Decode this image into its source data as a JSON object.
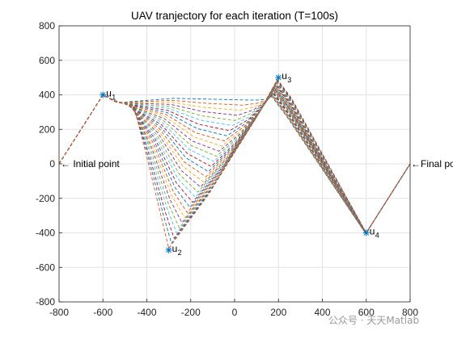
{
  "chart_data": {
    "type": "line",
    "title": "UAV tranjectory for each iteration (T=100s)",
    "xlabel": "",
    "ylabel": "",
    "xlim": [
      -800,
      800
    ],
    "ylim": [
      -800,
      800
    ],
    "xticks": [
      -800,
      -600,
      -400,
      -200,
      0,
      200,
      400,
      600,
      800
    ],
    "yticks": [
      -800,
      -600,
      -400,
      -200,
      0,
      200,
      400,
      600,
      800
    ],
    "grid": true,
    "line_style": "dashed",
    "iterations": 30,
    "waypoints": [
      {
        "name": "u",
        "index": "1",
        "x": -600,
        "y": 400
      },
      {
        "name": "u",
        "index": "2",
        "x": -300,
        "y": -500
      },
      {
        "name": "u",
        "index": "3",
        "x": 200,
        "y": 500
      },
      {
        "name": "u",
        "index": "4",
        "x": 600,
        "y": -400
      }
    ],
    "start": {
      "label": "Initial point",
      "x": -800,
      "y": 0
    },
    "end": {
      "label": "Final point",
      "x": 800,
      "y": 0
    },
    "series_colors": [
      "#0072BD",
      "#D95319",
      "#EDB120",
      "#7E2F8E",
      "#77AC30",
      "#4DBEEE",
      "#A2142F"
    ]
  },
  "watermark": "公众号 · 天天Matlab"
}
